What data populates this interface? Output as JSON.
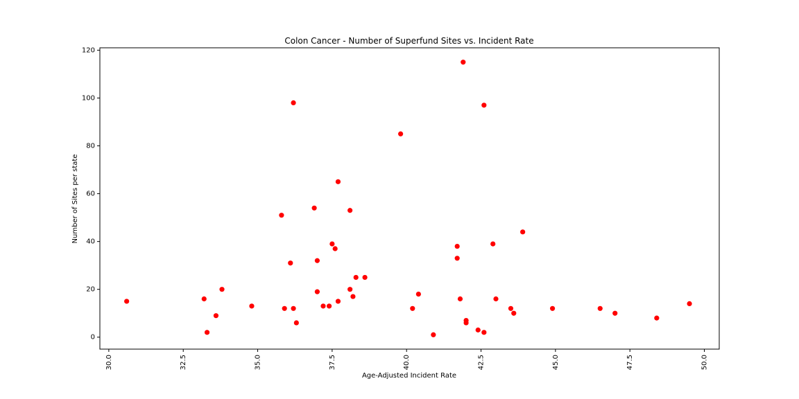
{
  "chart_data": {
    "type": "scatter",
    "title": "Colon Cancer - Number of Superfund Sites vs. Incident Rate",
    "xlabel": "Age-Adjusted Incident Rate",
    "ylabel": "Number of Sites per state",
    "xlim": [
      29.7,
      50.5
    ],
    "ylim": [
      -5,
      121
    ],
    "x_ticks": [
      "30.0",
      "32.5",
      "35.0",
      "37.5",
      "40.0",
      "42.5",
      "45.0",
      "47.5",
      "50.0"
    ],
    "y_ticks": [
      "0",
      "20",
      "40",
      "60",
      "80",
      "100",
      "120"
    ],
    "grid": false,
    "marker_color": "#ff0000",
    "series": [
      {
        "points": [
          [
            30.6,
            15
          ],
          [
            33.2,
            16
          ],
          [
            33.3,
            2
          ],
          [
            33.6,
            9
          ],
          [
            33.8,
            20
          ],
          [
            34.8,
            13
          ],
          [
            35.8,
            51
          ],
          [
            35.9,
            12
          ],
          [
            36.1,
            31
          ],
          [
            36.2,
            12
          ],
          [
            36.2,
            98
          ],
          [
            36.3,
            6
          ],
          [
            36.9,
            54
          ],
          [
            37.0,
            32
          ],
          [
            37.0,
            19
          ],
          [
            37.2,
            13
          ],
          [
            37.4,
            13
          ],
          [
            37.5,
            39
          ],
          [
            37.6,
            37
          ],
          [
            37.7,
            65
          ],
          [
            37.7,
            15
          ],
          [
            38.1,
            53
          ],
          [
            38.1,
            20
          ],
          [
            38.2,
            17
          ],
          [
            38.3,
            25
          ],
          [
            38.6,
            25
          ],
          [
            39.8,
            85
          ],
          [
            40.2,
            12
          ],
          [
            40.4,
            18
          ],
          [
            40.9,
            1
          ],
          [
            41.7,
            38
          ],
          [
            41.7,
            33
          ],
          [
            41.8,
            16
          ],
          [
            41.9,
            115
          ],
          [
            42.0,
            7
          ],
          [
            42.0,
            6
          ],
          [
            42.4,
            3
          ],
          [
            42.6,
            97
          ],
          [
            42.6,
            2
          ],
          [
            42.9,
            39
          ],
          [
            43.0,
            16
          ],
          [
            43.5,
            12
          ],
          [
            43.6,
            10
          ],
          [
            43.9,
            44
          ],
          [
            44.9,
            12
          ],
          [
            46.5,
            12
          ],
          [
            47.0,
            10
          ],
          [
            48.4,
            8
          ],
          [
            49.5,
            14
          ]
        ]
      }
    ]
  }
}
